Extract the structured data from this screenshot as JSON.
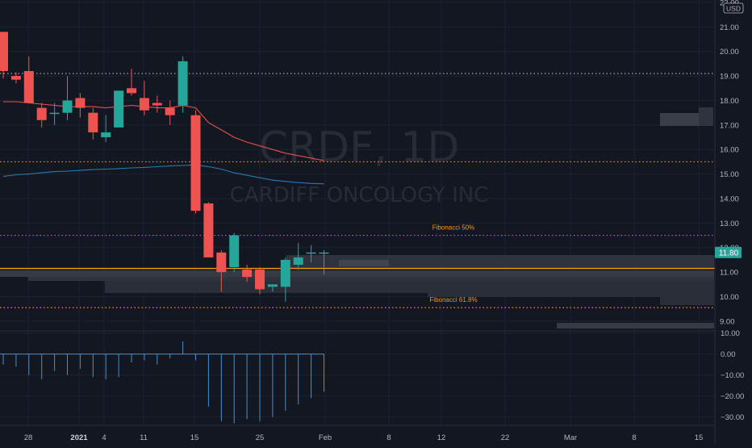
{
  "chart_data": {
    "type": "candlestick",
    "symbol": "CRDF, 1D",
    "company": "CARDIFF ONCOLOGY INC",
    "currency": "USD",
    "price_axis": {
      "ylim": [
        8.6,
        22.0
      ],
      "ticks": [
        9,
        10,
        11,
        12,
        13,
        14,
        15,
        16,
        17,
        18,
        19,
        20,
        21,
        22
      ],
      "tick_labels": [
        "9.00",
        "10.00",
        "11.00",
        "12.00",
        "13.00",
        "14.00",
        "15.00",
        "16.00",
        "17.00",
        "18.00",
        "19.00",
        "20.00",
        "21.00",
        "22.00"
      ],
      "last_price": 11.8,
      "last_price_label": "11.80"
    },
    "x_axis": {
      "labels": [
        "28",
        "2021",
        "4",
        "11",
        "15",
        "25",
        "Feb",
        "8",
        "12",
        "22",
        "Mar",
        "8",
        "15"
      ]
    },
    "candles": [
      {
        "date": "2020-12-23",
        "o": 20.8,
        "h": 20.8,
        "l": 18.9,
        "c": 19.2
      },
      {
        "date": "2020-12-24",
        "o": 19.0,
        "h": 19.15,
        "l": 18.7,
        "c": 18.85
      },
      {
        "date": "2020-12-28",
        "o": 19.2,
        "h": 19.8,
        "l": 17.9,
        "c": 17.9
      },
      {
        "date": "2020-12-29",
        "o": 17.7,
        "h": 17.9,
        "l": 16.9,
        "c": 17.2
      },
      {
        "date": "2020-12-30",
        "o": 17.5,
        "h": 17.9,
        "l": 17.0,
        "c": 17.5
      },
      {
        "date": "2020-12-31",
        "o": 17.5,
        "h": 19.0,
        "l": 17.2,
        "c": 18.0
      },
      {
        "date": "2021-01-04",
        "o": 18.1,
        "h": 18.3,
        "l": 17.3,
        "c": 17.7
      },
      {
        "date": "2021-01-05",
        "o": 17.5,
        "h": 17.7,
        "l": 16.4,
        "c": 16.7
      },
      {
        "date": "2021-01-06",
        "o": 16.5,
        "h": 17.4,
        "l": 16.3,
        "c": 16.7
      },
      {
        "date": "2021-01-07",
        "o": 16.9,
        "h": 18.4,
        "l": 16.9,
        "c": 18.4
      },
      {
        "date": "2021-01-08",
        "o": 18.5,
        "h": 19.3,
        "l": 18.2,
        "c": 18.3
      },
      {
        "date": "2021-01-11",
        "o": 18.1,
        "h": 18.8,
        "l": 17.4,
        "c": 17.6
      },
      {
        "date": "2021-01-12",
        "o": 17.9,
        "h": 18.2,
        "l": 17.5,
        "c": 17.8
      },
      {
        "date": "2021-01-13",
        "o": 17.7,
        "h": 18.0,
        "l": 17.0,
        "c": 17.4
      },
      {
        "date": "2021-01-14",
        "o": 17.8,
        "h": 19.8,
        "l": 17.5,
        "c": 19.6
      },
      {
        "date": "2021-01-15",
        "o": 17.4,
        "h": 17.6,
        "l": 13.4,
        "c": 13.5
      },
      {
        "date": "2021-01-19",
        "o": 13.8,
        "h": 13.85,
        "l": 11.6,
        "c": 11.6
      },
      {
        "date": "2021-01-20",
        "o": 11.8,
        "h": 11.9,
        "l": 10.2,
        "c": 11.0
      },
      {
        "date": "2021-01-21",
        "o": 11.2,
        "h": 12.6,
        "l": 11.0,
        "c": 12.5
      },
      {
        "date": "2021-01-22",
        "o": 11.1,
        "h": 11.3,
        "l": 10.6,
        "c": 10.8
      },
      {
        "date": "2021-01-25",
        "o": 11.1,
        "h": 11.2,
        "l": 10.1,
        "c": 10.3
      },
      {
        "date": "2021-01-26",
        "o": 10.4,
        "h": 10.5,
        "l": 10.2,
        "c": 10.5
      },
      {
        "date": "2021-01-27",
        "o": 10.4,
        "h": 11.6,
        "l": 9.8,
        "c": 11.5
      },
      {
        "date": "2021-01-28",
        "o": 11.3,
        "h": 12.2,
        "l": 11.1,
        "c": 11.6
      },
      {
        "date": "2021-01-29",
        "o": 11.8,
        "h": 12.1,
        "l": 11.4,
        "c": 11.8
      },
      {
        "date": "2021-02-01",
        "o": 11.8,
        "h": 11.9,
        "l": 10.9,
        "c": 11.8
      }
    ],
    "ma_red": [
      17.95,
      17.95,
      17.9,
      17.85,
      17.8,
      17.75,
      17.75,
      17.75,
      17.7,
      17.75,
      17.8,
      17.75,
      17.7,
      17.7,
      17.8,
      17.7,
      17.1,
      16.8,
      16.5,
      16.3,
      16.15,
      16.0,
      15.85,
      15.75,
      15.65,
      15.55
    ],
    "ma_blue": [
      14.9,
      14.97,
      15.0,
      15.05,
      15.1,
      15.12,
      15.15,
      15.18,
      15.2,
      15.22,
      15.25,
      15.27,
      15.3,
      15.33,
      15.35,
      15.37,
      15.3,
      15.2,
      15.05,
      14.95,
      14.85,
      14.75,
      14.7,
      14.65,
      14.62,
      14.6
    ],
    "horizontal_lines": [
      {
        "price": 19.1,
        "color": "#b2b5be",
        "style": "dotted"
      },
      {
        "price": 15.5,
        "color": "#ff9800",
        "style": "dotted"
      },
      {
        "price": 12.5,
        "color": "#e040fb",
        "style": "dotted",
        "label": "Fibonacci 50%",
        "label_color": "#ff9800"
      },
      {
        "price": 11.15,
        "color": "#ff9800",
        "style": "solid"
      },
      {
        "price": 9.55,
        "color": "#ff9800",
        "style": "dotted",
        "label": "Fibonacci 61.8%",
        "label_color": "#ff9800"
      }
    ],
    "oscillator": {
      "ylim": [
        -34,
        11
      ],
      "ticks": [
        10,
        0,
        -10,
        -20,
        -30
      ],
      "tick_labels": [
        "10.00",
        "0.00",
        "−10.00",
        "−20.00",
        "−30.00"
      ],
      "values": [
        -5,
        -6,
        -10,
        -12,
        -8,
        -10,
        -7,
        -11,
        -12,
        -11,
        -4,
        -3,
        -5,
        -2,
        6,
        -3,
        -25,
        -32,
        -33,
        -31,
        -32,
        -30,
        -27,
        -24,
        -21,
        -18
      ]
    },
    "colors": {
      "up": "#26a69a",
      "down": "#ef5350",
      "ma_red": "#e0524c",
      "ma_blue": "#2a7ab0",
      "osc": "#4a8fc7",
      "background": "#131722",
      "grid": "#1e222d",
      "axis_text": "#b2b5be",
      "last_price_bg": "#26a69a"
    }
  }
}
